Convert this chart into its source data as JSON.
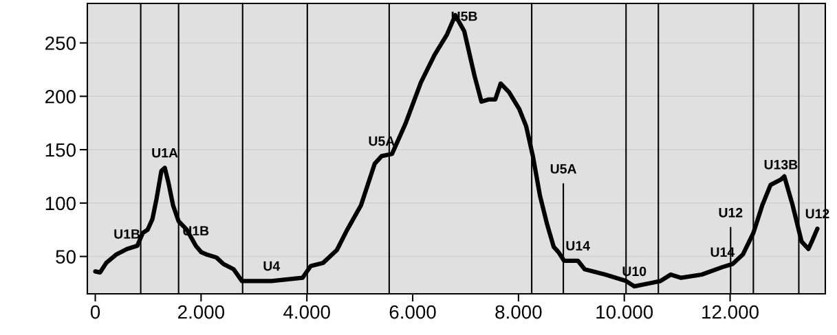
{
  "chart_data": {
    "type": "line",
    "xlim": [
      -150,
      13800
    ],
    "ylim": [
      15,
      287
    ],
    "xticks": [
      0,
      {
        "value": 2000,
        "label": "2.000"
      },
      {
        "value": 4000,
        "label": "4.000"
      },
      {
        "value": 6000,
        "label": "6.000"
      },
      {
        "value": 8000,
        "label": "8.000"
      },
      {
        "value": 10000,
        "label": "10.000"
      },
      {
        "value": 12000,
        "label": "12.000"
      }
    ],
    "yticks": [
      50,
      100,
      150,
      200,
      250
    ],
    "grid": "y",
    "legend": false,
    "marker": "none",
    "line_style": "solid",
    "series": [
      {
        "color": "#000000",
        "x": [
          0,
          91,
          208,
          403,
          599,
          794,
          898,
          989,
          1080,
          1158,
          1249,
          1314,
          1379,
          1470,
          1575,
          1731,
          1900,
          2004,
          2095,
          2291,
          2421,
          2616,
          2772,
          3331,
          3917,
          4073,
          4307,
          4567,
          4762,
          5023,
          5283,
          5413,
          5609,
          5869,
          6155,
          6416,
          6650,
          6806,
          6975,
          7170,
          7300,
          7430,
          7560,
          7664,
          7820,
          8015,
          8145,
          8276,
          8406,
          8536,
          8666,
          8757,
          8861,
          9122,
          9252,
          9642,
          10033,
          10189,
          10488,
          10683,
          10878,
          11074,
          11464,
          11854,
          12049,
          12244,
          12440,
          12609,
          12765,
          12960,
          13025,
          13182,
          13351,
          13481,
          13546,
          13650
        ],
        "values": [
          36,
          35,
          44,
          52,
          57,
          60,
          72,
          75,
          85,
          104,
          130,
          133,
          120,
          98,
          83,
          75,
          60,
          54,
          52,
          49,
          43,
          38,
          27,
          27,
          30,
          41,
          44,
          56,
          75,
          98,
          137,
          144,
          146,
          175,
          213,
          239,
          258,
          276,
          261,
          219,
          195,
          197,
          197,
          212,
          204,
          188,
          172,
          143,
          107,
          81,
          59,
          54,
          46,
          46,
          38,
          33,
          27,
          22,
          25,
          27,
          33,
          30,
          33,
          40,
          43,
          52,
          72,
          98,
          117,
          122,
          125,
          98,
          64,
          57,
          64,
          76
        ]
      },
      {
        "color": "#000000",
        "x": [
          8848,
          8848
        ],
        "values": [
          15,
          118
        ]
      },
      {
        "color": "#000000",
        "x": [
          12010,
          12010
        ],
        "values": [
          15,
          77
        ]
      }
    ],
    "ref_lines": [
      {
        "axis": "x",
        "value": 859,
        "color": "#000000"
      },
      {
        "axis": "x",
        "value": 1575,
        "color": "#000000"
      },
      {
        "axis": "x",
        "value": 2785,
        "color": "#000000"
      },
      {
        "axis": "x",
        "value": 4008,
        "color": "#000000"
      },
      {
        "axis": "x",
        "value": 5556,
        "color": "#000000"
      },
      {
        "axis": "x",
        "value": 8250,
        "color": "#000000"
      },
      {
        "axis": "x",
        "value": 10033,
        "color": "#000000"
      },
      {
        "axis": "x",
        "value": 10644,
        "color": "#000000"
      },
      {
        "axis": "x",
        "value": 12440,
        "color": "#000000"
      },
      {
        "axis": "x",
        "value": 13299,
        "color": "#000000"
      }
    ],
    "annotations": [
      {
        "text": "U1B",
        "x": 599,
        "y": 57
      },
      {
        "text": "U1A",
        "x": 1314,
        "y": 133
      },
      {
        "text": "U1B",
        "x": 1900,
        "y": 60
      },
      {
        "text": "U4",
        "x": 3331,
        "y": 27
      },
      {
        "text": "U5A",
        "x": 5413,
        "y": 144
      },
      {
        "text": "U5B",
        "x": 6975,
        "y": 261
      },
      {
        "text": "U5A",
        "x": 8848,
        "y": 118
      },
      {
        "text": "U14",
        "x": 9122,
        "y": 46
      },
      {
        "text": "U10",
        "x": 10189,
        "y": 22
      },
      {
        "text": "U12",
        "x": 12010,
        "y": 77
      },
      {
        "text": "U14",
        "x": 11854,
        "y": 40
      },
      {
        "text": "U13B",
        "x": 12960,
        "y": 122
      },
      {
        "text": "U12",
        "x": 13650,
        "y": 76
      }
    ]
  }
}
